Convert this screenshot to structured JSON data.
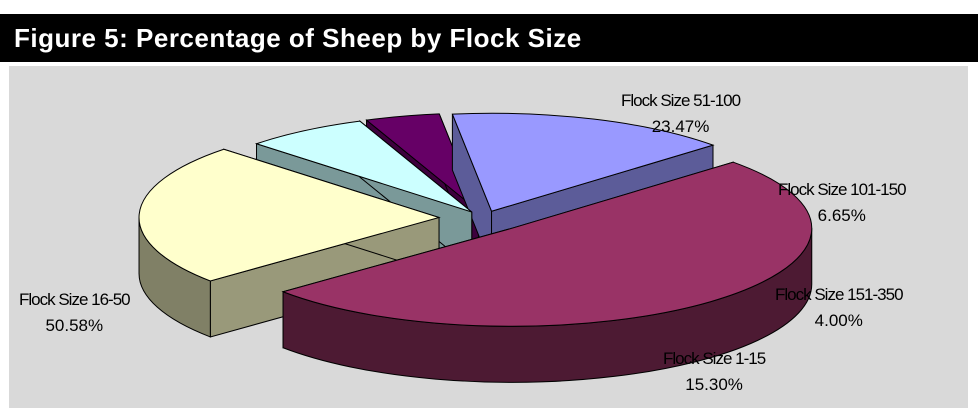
{
  "title": "Figure 5: Percentage of Sheep by Flock Size",
  "chart_data": {
    "type": "pie",
    "three_d": true,
    "exploded": true,
    "legend": "none",
    "slices": [
      {
        "label": "Flock Size 1-15",
        "value": 15.3,
        "value_label": "15.30%",
        "color": "#9999ff"
      },
      {
        "label": "Flock Size 16-50",
        "value": 50.58,
        "value_label": "50.58%",
        "color": "#993366"
      },
      {
        "label": "Flock Size 51-100",
        "value": 23.47,
        "value_label": "23.47%",
        "color": "#ffffcc"
      },
      {
        "label": "Flock Size 101-150",
        "value": 6.65,
        "value_label": "6.65%",
        "color": "#ccffff"
      },
      {
        "label": "Flock Size 151-350",
        "value": 4.0,
        "value_label": "4.00%",
        "color": "#660066"
      }
    ]
  }
}
